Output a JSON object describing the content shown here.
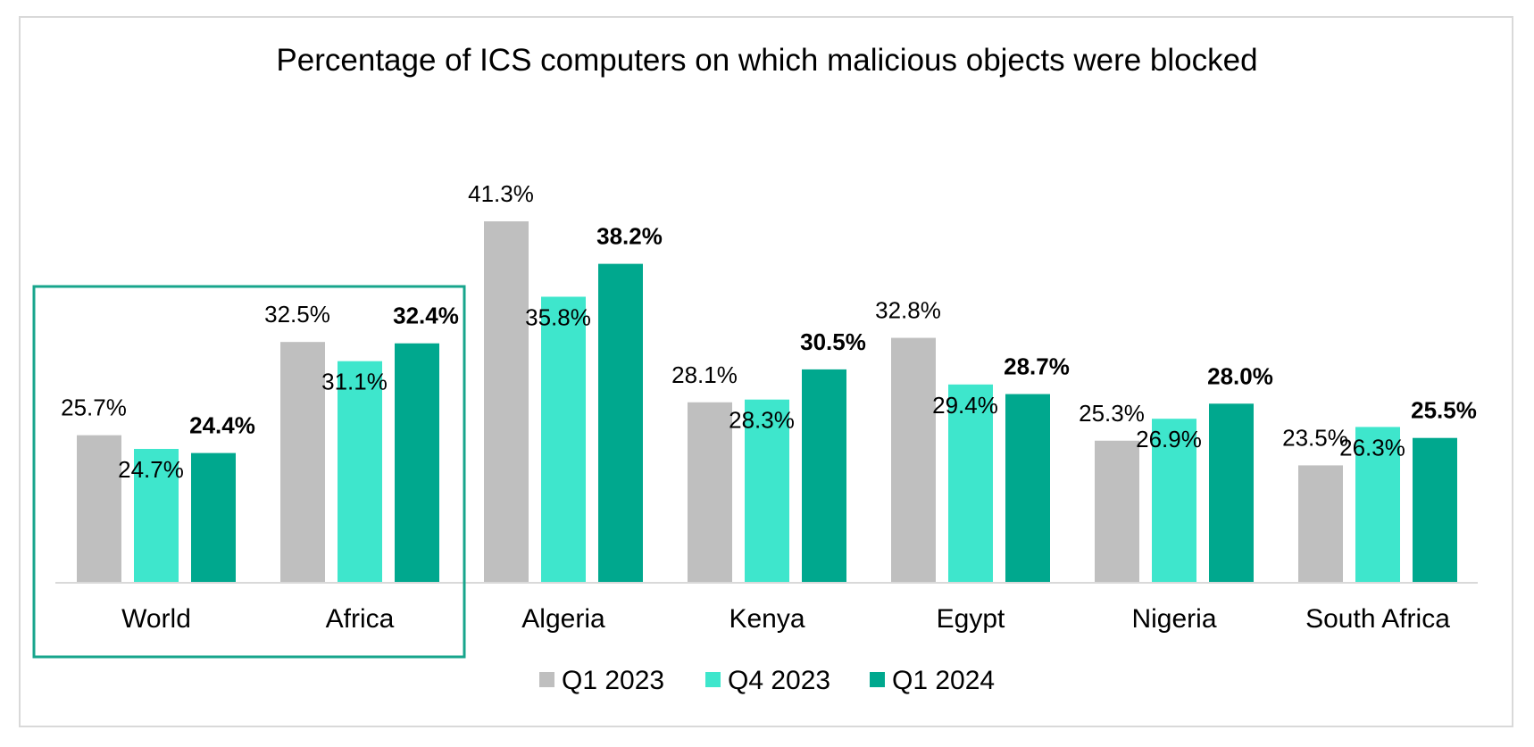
{
  "chart_data": {
    "type": "bar",
    "title": "Percentage of ICS computers on which malicious objects were blocked",
    "categories": [
      "World",
      "Africa",
      "Algeria",
      "Kenya",
      "Egypt",
      "Nigeria",
      "South Africa"
    ],
    "series": [
      {
        "name": "Q1 2023",
        "color": "#bfbfbf",
        "values": [
          25.7,
          32.5,
          41.3,
          28.1,
          32.8,
          25.3,
          23.5
        ],
        "labels": [
          "25.7%",
          "32.5%",
          "41.3%",
          "28.1%",
          "32.8%",
          "25.3%",
          "23.5%"
        ]
      },
      {
        "name": "Q4 2023",
        "color": "#3ee6cc",
        "values": [
          24.7,
          31.1,
          35.8,
          28.3,
          29.4,
          26.9,
          26.3
        ],
        "labels": [
          "24.7%",
          "31.1%",
          "35.8%",
          "28.3%",
          "29.4%",
          "26.9%",
          "26.3%"
        ]
      },
      {
        "name": "Q1 2024",
        "color": "#00a88e",
        "values": [
          24.4,
          32.4,
          38.2,
          30.5,
          28.7,
          28.0,
          25.5
        ],
        "labels": [
          "24.4%",
          "32.4%",
          "38.2%",
          "30.5%",
          "28.7%",
          "28.0%",
          "25.5%"
        ],
        "bold_labels": true
      }
    ],
    "highlight": {
      "categories": [
        "World",
        "Africa"
      ],
      "color": "#17a58c"
    },
    "legend_position": "bottom",
    "grid": false,
    "ylim": [
      15,
      45
    ]
  }
}
